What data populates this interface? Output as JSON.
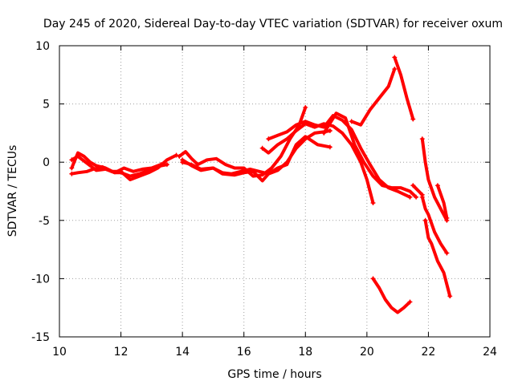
{
  "chart_data": {
    "type": "line",
    "title": "Day 245 of 2020, Sidereal Day-to-day VTEC variation (SDTVAR) for receiver oxum",
    "xlabel": "GPS time / hours",
    "ylabel": "SDTVAR / TECUs",
    "xlim": [
      10,
      24
    ],
    "ylim": [
      -15,
      10
    ],
    "xticks": [
      "10",
      "12",
      "14",
      "16",
      "18",
      "20",
      "22",
      "24"
    ],
    "yticks": [
      "10",
      "5",
      "0",
      "-5",
      "-10",
      "-15"
    ],
    "grid": true,
    "marker": "+",
    "color": "#ff0000",
    "series": [
      {
        "name": "s1",
        "x": [
          10.4,
          10.6,
          10.8,
          11.0,
          11.2,
          11.5,
          11.8,
          12.0,
          12.3,
          12.6,
          12.9,
          13.1,
          13.3,
          13.5
        ],
        "y": [
          -0.5,
          0.8,
          0.5,
          0.0,
          -0.3,
          -0.5,
          -0.9,
          -0.9,
          -1.2,
          -1.0,
          -0.7,
          -0.5,
          -0.3,
          -0.2
        ]
      },
      {
        "name": "s2",
        "x": [
          10.4,
          10.6,
          10.9,
          11.1,
          11.4,
          11.7,
          12.0,
          12.3,
          12.6,
          12.9,
          13.2,
          13.5,
          13.8
        ],
        "y": [
          -1.0,
          -0.9,
          -0.8,
          -0.6,
          -0.4,
          -0.8,
          -0.8,
          -1.5,
          -1.2,
          -0.9,
          -0.5,
          0.2,
          0.6
        ]
      },
      {
        "name": "s3",
        "x": [
          10.4,
          10.6,
          10.9,
          11.2,
          11.5,
          11.8,
          12.1,
          12.4,
          12.7,
          13.0,
          13.3
        ],
        "y": [
          0.2,
          0.5,
          -0.1,
          -0.7,
          -0.6,
          -0.9,
          -0.5,
          -0.8,
          -0.6,
          -0.5,
          -0.2
        ]
      },
      {
        "name": "s4",
        "x": [
          13.9,
          14.1,
          14.3,
          14.5,
          14.8,
          15.1,
          15.4,
          15.7,
          16.0,
          16.3,
          16.6,
          16.9,
          17.2,
          17.5,
          17.8,
          18.0
        ],
        "y": [
          0.5,
          0.9,
          0.3,
          -0.2,
          0.2,
          0.3,
          -0.2,
          -0.5,
          -0.5,
          -1.2,
          -1.1,
          -0.5,
          0.5,
          2.0,
          3.2,
          4.7
        ]
      },
      {
        "name": "s5",
        "x": [
          14.0,
          14.3,
          14.6,
          15.0,
          15.3,
          15.7,
          16.0,
          16.3,
          16.6,
          16.8,
          17.1,
          17.4,
          17.7,
          18.0,
          18.4,
          18.8
        ],
        "y": [
          0.0,
          -0.2,
          -0.6,
          -0.5,
          -1.0,
          -1.1,
          -0.9,
          -0.8,
          -1.6,
          -1.0,
          -0.5,
          -0.2,
          1.5,
          2.2,
          1.5,
          1.3
        ]
      },
      {
        "name": "s6",
        "x": [
          14.0,
          14.3,
          14.6,
          15.0,
          15.3,
          15.6,
          15.9,
          16.2,
          16.5,
          16.8,
          17.1,
          17.4,
          17.7,
          18.0,
          18.3,
          18.6,
          18.8
        ],
        "y": [
          0.2,
          -0.3,
          -0.7,
          -0.5,
          -0.9,
          -1.0,
          -0.8,
          -0.6,
          -0.8,
          -1.0,
          -0.7,
          0.0,
          1.2,
          2.0,
          2.5,
          2.6,
          2.7
        ]
      },
      {
        "name": "s7",
        "x": [
          16.6,
          16.8,
          17.1,
          17.4,
          17.7,
          18.0,
          18.3,
          18.6,
          18.9,
          19.2,
          19.5,
          19.8,
          20.0,
          20.2
        ],
        "y": [
          1.2,
          0.8,
          1.5,
          2.0,
          2.7,
          3.3,
          3.0,
          3.3,
          3.1,
          2.5,
          1.5,
          0.0,
          -1.5,
          -3.5
        ]
      },
      {
        "name": "s8",
        "x": [
          16.8,
          17.1,
          17.4,
          17.7,
          18.0,
          18.3,
          18.6,
          18.9,
          19.2,
          19.5,
          19.8,
          20.1,
          20.4,
          20.7,
          21.0,
          21.4
        ],
        "y": [
          2.0,
          2.3,
          2.6,
          3.2,
          3.5,
          3.2,
          3.0,
          4.0,
          3.6,
          2.8,
          1.2,
          -0.2,
          -1.5,
          -2.2,
          -2.5,
          -3.0
        ]
      },
      {
        "name": "s9",
        "x": [
          18.6,
          19.0,
          19.3,
          19.6,
          19.9,
          20.2,
          20.5,
          20.8,
          21.1,
          21.4,
          21.6
        ],
        "y": [
          2.5,
          4.2,
          3.8,
          1.5,
          0.0,
          -1.2,
          -2.0,
          -2.2,
          -2.2,
          -2.5,
          -3.0
        ]
      },
      {
        "name": "s10",
        "x": [
          19.5,
          19.8,
          20.1,
          20.4,
          20.7,
          20.9
        ],
        "y": [
          3.5,
          3.2,
          4.5,
          5.5,
          6.5,
          8.0
        ]
      },
      {
        "name": "s11",
        "x": [
          20.9,
          21.1,
          21.3,
          21.5
        ],
        "y": [
          9.0,
          7.5,
          5.5,
          3.7
        ]
      },
      {
        "name": "s12",
        "x": [
          20.2,
          20.4,
          20.6,
          20.8,
          21.0,
          21.2,
          21.4
        ],
        "y": [
          -10.0,
          -10.8,
          -11.8,
          -12.5,
          -12.9,
          -12.5,
          -12.0
        ]
      },
      {
        "name": "s13",
        "x": [
          21.5,
          21.8
        ],
        "y": [
          -2.0,
          -2.8
        ]
      },
      {
        "name": "s14",
        "x": [
          21.8,
          21.9,
          22.0,
          22.2,
          22.4,
          22.6
        ],
        "y": [
          2.0,
          0.0,
          -1.5,
          -3.0,
          -4.0,
          -5.0
        ]
      },
      {
        "name": "s15",
        "x": [
          21.8,
          21.9,
          22.0,
          22.2,
          22.4,
          22.6
        ],
        "y": [
          -3.0,
          -4.0,
          -4.5,
          -6.0,
          -7.0,
          -7.8
        ]
      },
      {
        "name": "s16",
        "x": [
          21.9,
          22.0,
          22.1,
          22.3,
          22.5,
          22.7
        ],
        "y": [
          -5.0,
          -6.5,
          -7.0,
          -8.5,
          -9.5,
          -11.5
        ]
      },
      {
        "name": "s17",
        "x": [
          22.3,
          22.5,
          22.6
        ],
        "y": [
          -2.0,
          -3.5,
          -4.8
        ]
      }
    ]
  }
}
